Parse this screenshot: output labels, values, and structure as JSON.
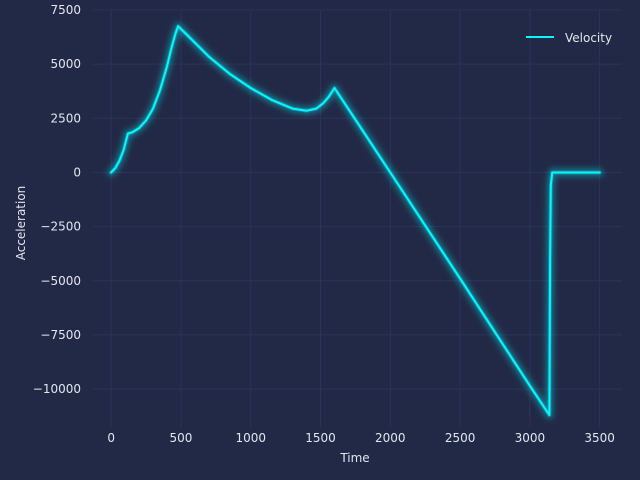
{
  "chart_data": {
    "type": "line",
    "title": "",
    "xlabel": "Time",
    "ylabel": "Acceleration",
    "xlim": [
      -130,
      3660
    ],
    "ylim": [
      -11750,
      7500
    ],
    "xticks": [
      0,
      500,
      1000,
      1500,
      2000,
      2500,
      3000,
      3500
    ],
    "yticks": [
      -10000,
      -7500,
      -5000,
      -2500,
      0,
      2500,
      5000,
      7500
    ],
    "xtick_labels": [
      "0",
      "500",
      "1000",
      "1500",
      "2000",
      "2500",
      "3000",
      "3500"
    ],
    "ytick_labels": [
      "−10000",
      "−7500",
      "−5000",
      "−2500",
      "0",
      "2500",
      "5000",
      "7500"
    ],
    "grid": true,
    "legend_position": "top-right",
    "colors": {
      "background": "#212946",
      "grid": "#2a3459",
      "line": "#08f7fe",
      "text": "#e3e6ee"
    },
    "series": [
      {
        "name": "Velocity",
        "x": [
          0,
          30,
          60,
          90,
          120,
          150,
          200,
          250,
          300,
          350,
          400,
          430,
          460,
          480,
          560,
          700,
          850,
          1000,
          1150,
          1300,
          1400,
          1470,
          1520,
          1560,
          1600,
          1800,
          2000,
          2500,
          3000,
          3140,
          3145,
          3150,
          3160,
          3180,
          3300,
          3500
        ],
        "y": [
          0,
          200,
          550,
          1050,
          1800,
          1850,
          2050,
          2400,
          2950,
          3800,
          4900,
          5700,
          6400,
          6750,
          6250,
          5350,
          4550,
          3900,
          3350,
          2950,
          2850,
          2950,
          3200,
          3500,
          3900,
          1950,
          0,
          -4900,
          -9850,
          -11200,
          -4000,
          -600,
          0,
          0,
          0,
          0
        ]
      }
    ]
  }
}
